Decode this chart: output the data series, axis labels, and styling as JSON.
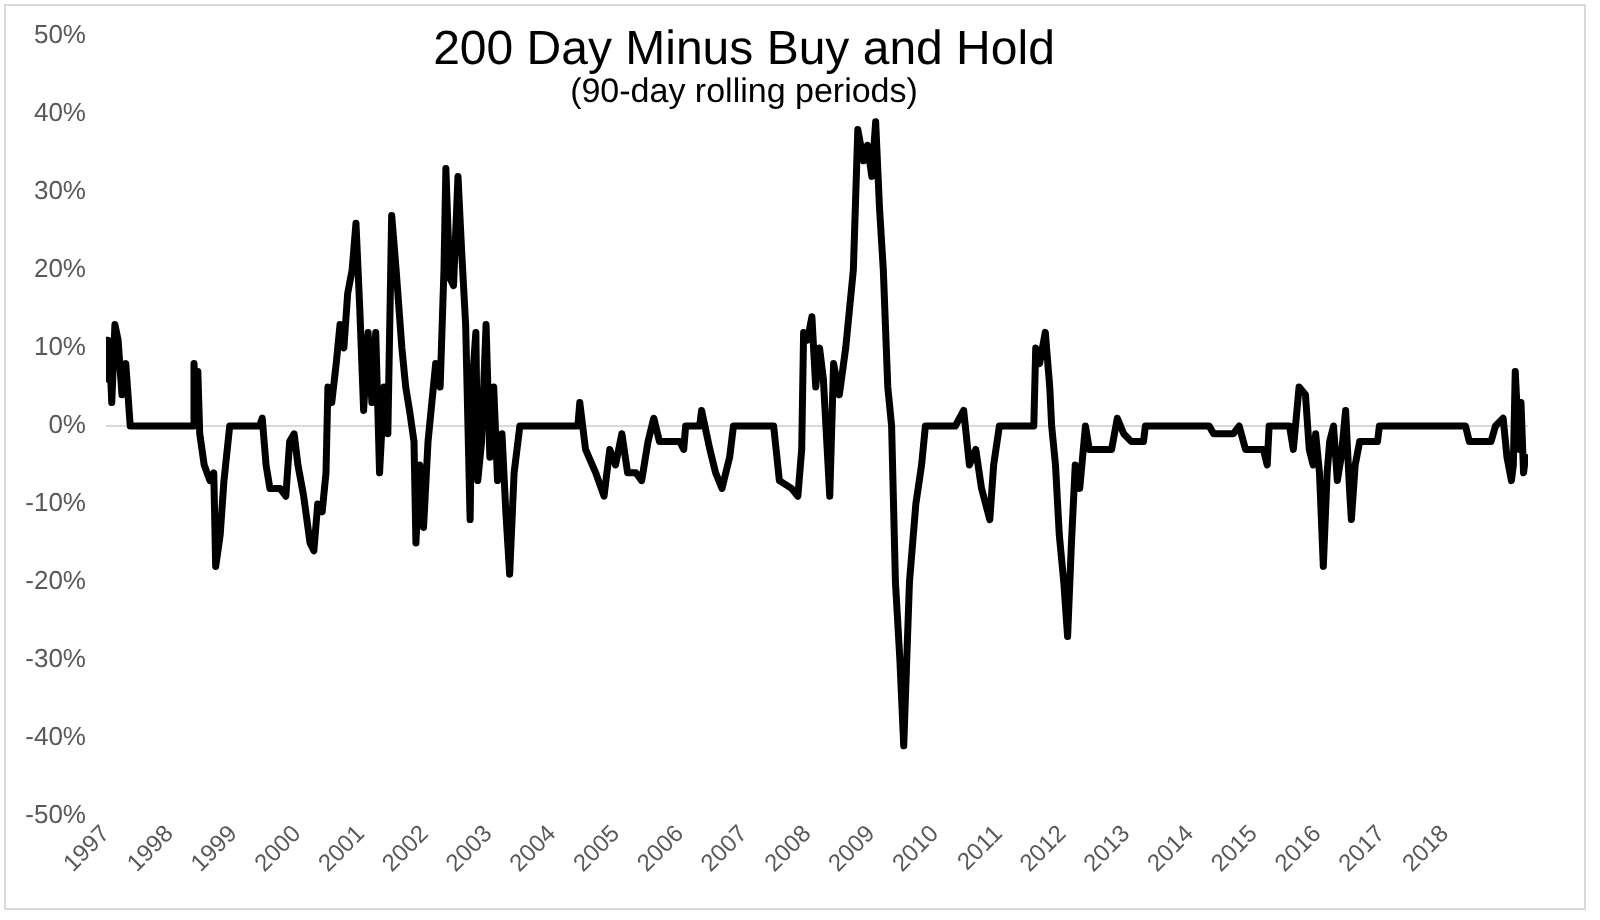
{
  "chart_data": {
    "type": "line",
    "title": "200 Day Minus Buy and Hold",
    "subtitle": "(90-day rolling periods)",
    "x": [
      1997.0,
      1997.03,
      1997.06,
      1997.09,
      1997.14,
      1997.19,
      1997.25,
      1997.31,
      1997.38,
      1998.35,
      1998.38,
      1998.41,
      1998.44,
      1998.47,
      1998.54,
      1998.63,
      1998.69,
      1998.72,
      1998.79,
      1998.85,
      1998.94,
      1999.41,
      1999.45,
      1999.51,
      1999.57,
      1999.73,
      1999.82,
      1999.88,
      1999.95,
      2000.01,
      2000.1,
      2000.2,
      2000.26,
      2000.32,
      2000.39,
      2000.45,
      2000.48,
      2000.54,
      2000.61,
      2000.67,
      2000.73,
      2000.79,
      2000.86,
      2000.92,
      2000.98,
      2001.04,
      2001.11,
      2001.17,
      2001.23,
      2001.29,
      2001.36,
      2001.42,
      2001.48,
      2001.55,
      2001.64,
      2001.7,
      2001.76,
      2001.83,
      2001.86,
      2001.92,
      2001.98,
      2002.05,
      2002.11,
      2002.17,
      2002.24,
      2002.3,
      2002.33,
      2002.39,
      2002.45,
      2002.52,
      2002.58,
      2002.64,
      2002.71,
      2002.74,
      2002.8,
      2002.83,
      2002.89,
      2002.96,
      2003.02,
      2003.08,
      2003.14,
      2003.21,
      2003.27,
      2003.33,
      2003.4,
      2003.46,
      2003.49,
      2004.4,
      2004.43,
      2004.52,
      2004.68,
      2004.81,
      2004.9,
      2004.99,
      2005.09,
      2005.18,
      2005.31,
      2005.4,
      2005.5,
      2005.59,
      2005.68,
      2006.0,
      2006.06,
      2006.09,
      2006.31,
      2006.34,
      2006.47,
      2006.56,
      2006.66,
      2006.78,
      2006.84,
      2007.47,
      2007.56,
      2007.75,
      2007.85,
      2007.91,
      2007.94,
      2008.0,
      2008.07,
      2008.13,
      2008.19,
      2008.25,
      2008.35,
      2008.41,
      2008.5,
      2008.6,
      2008.72,
      2008.79,
      2008.88,
      2008.94,
      2009.01,
      2009.07,
      2009.13,
      2009.19,
      2009.26,
      2009.32,
      2009.38,
      2009.45,
      2009.51,
      2009.6,
      2009.7,
      2009.79,
      2009.85,
      2010.32,
      2010.45,
      2010.54,
      2010.64,
      2010.73,
      2010.86,
      2010.92,
      2011.01,
      2011.55,
      2011.58,
      2011.64,
      2011.73,
      2011.8,
      2011.83,
      2011.89,
      2011.95,
      2012.02,
      2012.08,
      2012.14,
      2012.2,
      2012.27,
      2012.36,
      2012.42,
      2012.77,
      2012.86,
      2012.96,
      2013.08,
      2013.27,
      2013.3,
      2014.3,
      2014.37,
      2014.68,
      2014.77,
      2014.87,
      2015.15,
      2015.21,
      2015.24,
      2015.56,
      2015.62,
      2015.71,
      2015.81,
      2015.87,
      2015.93,
      2015.97,
      2016.03,
      2016.09,
      2016.15,
      2016.19,
      2016.25,
      2016.31,
      2016.37,
      2016.44,
      2016.5,
      2016.53,
      2016.59,
      2016.66,
      2016.94,
      2016.97,
      2018.32,
      2018.38,
      2018.72,
      2018.79,
      2018.91,
      2018.97,
      2019.04,
      2019.07,
      2019.1,
      2019.16,
      2019.19,
      2019.23,
      2019.26
    ],
    "series": [
      {
        "color": "#000000",
        "values": [
          11,
          6,
          9,
          3,
          13,
          11,
          4,
          8,
          0,
          0,
          8,
          2,
          7,
          -1,
          -5,
          -7,
          -6,
          -18,
          -14,
          -7,
          0,
          0,
          1,
          -5,
          -8,
          -8,
          -9,
          -2,
          -1,
          -5,
          -9,
          -15,
          -16,
          -10,
          -11,
          -6,
          5,
          3,
          8,
          13,
          10,
          17,
          20,
          26,
          15,
          2,
          12,
          3,
          12,
          -6,
          5,
          -1,
          27,
          20,
          10,
          5,
          2,
          -2,
          -15,
          -5,
          -13,
          -2,
          3,
          8,
          5,
          20,
          33,
          19,
          18,
          32,
          22,
          13,
          -12,
          5,
          12,
          -7,
          -2,
          13,
          -4,
          5,
          -7,
          -1,
          -11,
          -19,
          -6,
          -2,
          0,
          0,
          3,
          -3,
          -6,
          -9,
          -3,
          -5,
          -1,
          -6,
          -6,
          -7,
          -2,
          1,
          -2,
          -2,
          -3,
          0,
          0,
          2,
          -3,
          -6,
          -8,
          -4,
          0,
          0,
          -7,
          -8,
          -9,
          -3,
          12,
          11,
          14,
          5,
          10,
          6,
          -9,
          8,
          4,
          10,
          20,
          38,
          34,
          36,
          32,
          39,
          28,
          20,
          5,
          0,
          -20,
          -30,
          -41,
          -20,
          -10,
          -5,
          0,
          0,
          2,
          -5,
          -3,
          -8,
          -12,
          -5,
          0,
          0,
          10,
          8,
          12,
          5,
          0,
          -5,
          -14,
          -20,
          -27,
          -15,
          -5,
          -8,
          0,
          -3,
          -3,
          1,
          -1,
          -2,
          -2,
          0,
          0,
          -1,
          -1,
          0,
          -3,
          -3,
          -5,
          0,
          0,
          -3,
          5,
          4,
          -3,
          -5,
          -1,
          -6,
          -18,
          -6,
          -2,
          0,
          -7,
          -4,
          2,
          -8,
          -12,
          -5,
          -2,
          -2,
          0,
          0,
          -2,
          -2,
          0,
          1,
          -4,
          -7,
          -5,
          7,
          -3,
          3,
          -6,
          -4
        ]
      }
    ],
    "xlim": [
      1997,
      2019.3
    ],
    "xticks": [
      1997,
      1998,
      1999,
      2000,
      2001,
      2002,
      2003,
      2004,
      2005,
      2006,
      2007,
      2008,
      2009,
      2010,
      2011,
      2012,
      2013,
      2014,
      2015,
      2016,
      2017,
      2018
    ],
    "ylim": [
      -50,
      50
    ],
    "yticks": [
      {
        "value": -50,
        "label": "-50%"
      },
      {
        "value": -40,
        "label": "-40%"
      },
      {
        "value": -30,
        "label": "-30%"
      },
      {
        "value": -20,
        "label": "-20%"
      },
      {
        "value": -10,
        "label": "-10%"
      },
      {
        "value": 0,
        "label": "0%"
      },
      {
        "value": 10,
        "label": "10%"
      },
      {
        "value": 20,
        "label": "20%"
      },
      {
        "value": 30,
        "label": "30%"
      },
      {
        "value": 40,
        "label": "40%"
      },
      {
        "value": 50,
        "label": "50%"
      }
    ]
  }
}
